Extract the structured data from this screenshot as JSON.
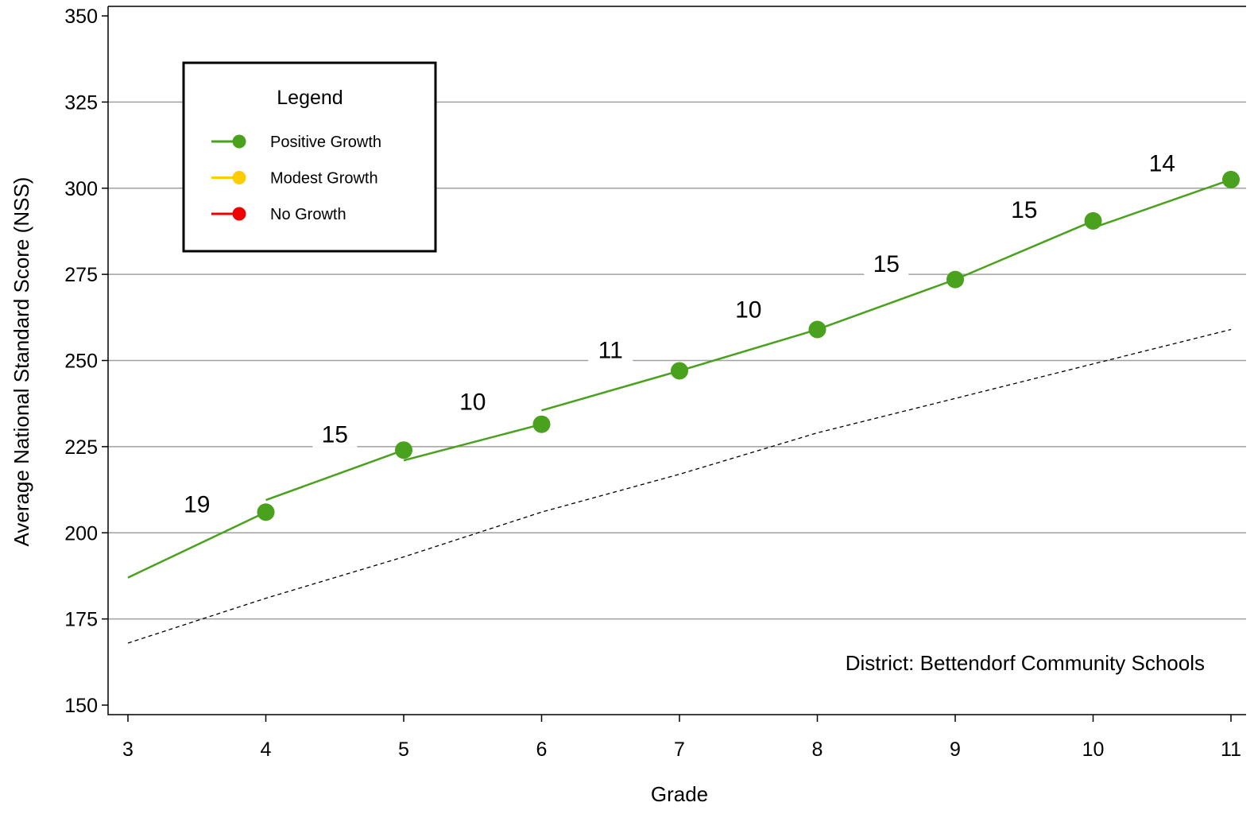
{
  "chart_data": {
    "type": "line",
    "xlabel": "Grade",
    "ylabel": "Average National Standard Score (NSS)",
    "x_ticks": [
      "3",
      "4",
      "5",
      "6",
      "7",
      "8",
      "9",
      "10",
      "11"
    ],
    "y_ticks": [
      "150",
      "175",
      "200",
      "225",
      "250",
      "275",
      "300",
      "325",
      "350"
    ],
    "xlim": [
      3,
      11
    ],
    "ylim": [
      150,
      350
    ],
    "grid": "horizontal",
    "annotation": "District: Bettendorf Community Schools",
    "legend": {
      "title": "Legend",
      "placement": "top-left",
      "items": [
        {
          "label": "Positive Growth",
          "color": "#4aa11e"
        },
        {
          "label": "Modest Growth",
          "color": "#ffcc00"
        },
        {
          "label": "No Growth",
          "color": "#ee0000"
        }
      ]
    },
    "points": [
      {
        "x": 4,
        "y": 206
      },
      {
        "x": 5,
        "y": 224
      },
      {
        "x": 6,
        "y": 231.5
      },
      {
        "x": 7,
        "y": 247
      },
      {
        "x": 8,
        "y": 259
      },
      {
        "x": 9,
        "y": 273.5
      },
      {
        "x": 10,
        "y": 290.5
      },
      {
        "x": 11,
        "y": 302.5
      }
    ],
    "segments": [
      {
        "x1": 3,
        "y1": 187,
        "x2": 4,
        "y2": 206,
        "growth": "19",
        "status": "Positive Growth"
      },
      {
        "x1": 4,
        "y1": 209.5,
        "x2": 5,
        "y2": 224,
        "growth": "15",
        "status": "Positive Growth"
      },
      {
        "x1": 5,
        "y1": 221,
        "x2": 6,
        "y2": 231.5,
        "growth": "10",
        "status": "Positive Growth"
      },
      {
        "x1": 6,
        "y1": 235.5,
        "x2": 7,
        "y2": 247,
        "growth": "11",
        "status": "Positive Growth"
      },
      {
        "x1": 7,
        "y1": 247,
        "x2": 8,
        "y2": 259,
        "growth": "10",
        "status": "Positive Growth"
      },
      {
        "x1": 8,
        "y1": 259,
        "x2": 9,
        "y2": 273.5,
        "growth": "15",
        "status": "Positive Growth"
      },
      {
        "x1": 9,
        "y1": 273.5,
        "x2": 10,
        "y2": 290.5,
        "growth": "15",
        "status": "Positive Growth"
      },
      {
        "x1": 10,
        "y1": 288.5,
        "x2": 11,
        "y2": 302.5,
        "growth": "14",
        "status": "Positive Growth"
      }
    ],
    "reference_line": {
      "style": "dashed",
      "x": [
        3,
        4,
        5,
        6,
        7,
        8,
        9,
        10,
        11
      ],
      "y": [
        168,
        181,
        193,
        206,
        217,
        229,
        239,
        249,
        259
      ]
    },
    "colors": {
      "positive": "#4aa11e",
      "modest": "#ffcc00",
      "none": "#ee0000",
      "grid": "#a0a0a0",
      "axis": "#000000"
    }
  }
}
